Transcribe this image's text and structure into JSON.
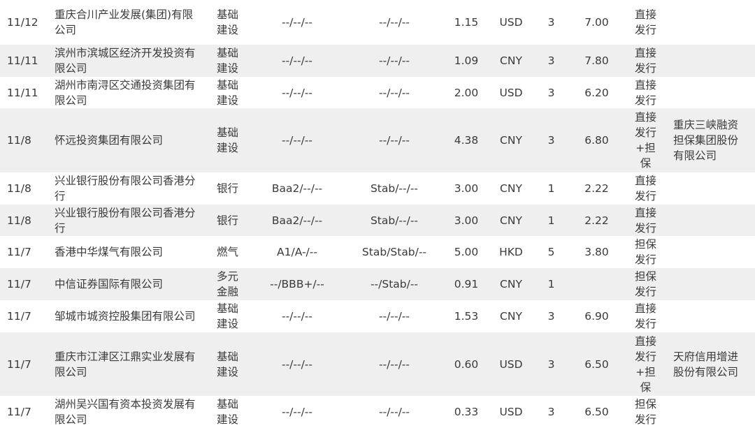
{
  "rows": [
    {
      "date": "11/12",
      "issuer": "重庆合川产业发展(集团)有限公司",
      "industry": "基础建设",
      "rating": "--/--/--",
      "outlook": "--/--/--",
      "amount": "1.15",
      "currency": "USD",
      "term": "3",
      "coupon": "7.00",
      "method": "直接发行",
      "guarantor": ""
    },
    {
      "date": "11/11",
      "issuer": "滨州市滨城区经济开发投资有限公司",
      "industry": "基础建设",
      "rating": "--/--/--",
      "outlook": "--/--/--",
      "amount": "1.09",
      "currency": "CNY",
      "term": "3",
      "coupon": "7.80",
      "method": "直接发行",
      "guarantor": ""
    },
    {
      "date": "11/11",
      "issuer": "湖州市南浔区交通投资集团有限公司",
      "industry": "基础建设",
      "rating": "--/--/--",
      "outlook": "--/--/--",
      "amount": "2.00",
      "currency": "USD",
      "term": "3",
      "coupon": "6.20",
      "method": "直接发行",
      "guarantor": ""
    },
    {
      "date": "11/8",
      "issuer": "怀远投资集团有限公司",
      "industry": "基础建设",
      "rating": "--/--/--",
      "outlook": "--/--/--",
      "amount": "4.38",
      "currency": "CNY",
      "term": "3",
      "coupon": "6.80",
      "method": "直接发行+担保",
      "guarantor": "重庆三峡融资担保集团股份有限公司"
    },
    {
      "date": "11/8",
      "issuer": "兴业银行股份有限公司香港分行",
      "industry": "银行",
      "rating": "Baa2/--/--",
      "outlook": "Stab/--/--",
      "amount": "3.00",
      "currency": "CNY",
      "term": "1",
      "coupon": "2.22",
      "method": "直接发行",
      "guarantor": ""
    },
    {
      "date": "11/8",
      "issuer": "兴业银行股份有限公司香港分行",
      "industry": "银行",
      "rating": "Baa2/--/--",
      "outlook": "Stab/--/--",
      "amount": "3.00",
      "currency": "CNY",
      "term": "1",
      "coupon": "2.22",
      "method": "直接发行",
      "guarantor": ""
    },
    {
      "date": "11/7",
      "issuer": "香港中华煤气有限公司",
      "industry": "燃气",
      "rating": "A1/A-/--",
      "outlook": "Stab/Stab/--",
      "amount": "5.00",
      "currency": "HKD",
      "term": "5",
      "coupon": "3.80",
      "method": "担保发行",
      "guarantor": ""
    },
    {
      "date": "11/7",
      "issuer": "中信证券国际有限公司",
      "industry": "多元金融",
      "rating": "--/BBB+/--",
      "outlook": "--/Stab/--",
      "amount": "0.91",
      "currency": "CNY",
      "term": "1",
      "coupon": "",
      "method": "担保发行",
      "guarantor": ""
    },
    {
      "date": "11/7",
      "issuer": "邹城市城资控股集团有限公司",
      "industry": "基础建设",
      "rating": "--/--/--",
      "outlook": "--/--/--",
      "amount": "1.53",
      "currency": "CNY",
      "term": "3",
      "coupon": "6.90",
      "method": "直接发行",
      "guarantor": ""
    },
    {
      "date": "11/7",
      "issuer": "重庆市江津区江鼎实业发展有限公司",
      "industry": "基础建设",
      "rating": "--/--/--",
      "outlook": "--/--/--",
      "amount": "0.60",
      "currency": "USD",
      "term": "3",
      "coupon": "6.50",
      "method": "直接发行+担保",
      "guarantor": "天府信用增进股份有限公司"
    },
    {
      "date": "11/7",
      "issuer": "湖州吴兴国有资本投资发展有限公司",
      "industry": "基础建设",
      "rating": "--/--/--",
      "outlook": "--/--/--",
      "amount": "0.33",
      "currency": "USD",
      "term": "3",
      "coupon": "6.50",
      "method": "担保发行",
      "guarantor": ""
    }
  ]
}
